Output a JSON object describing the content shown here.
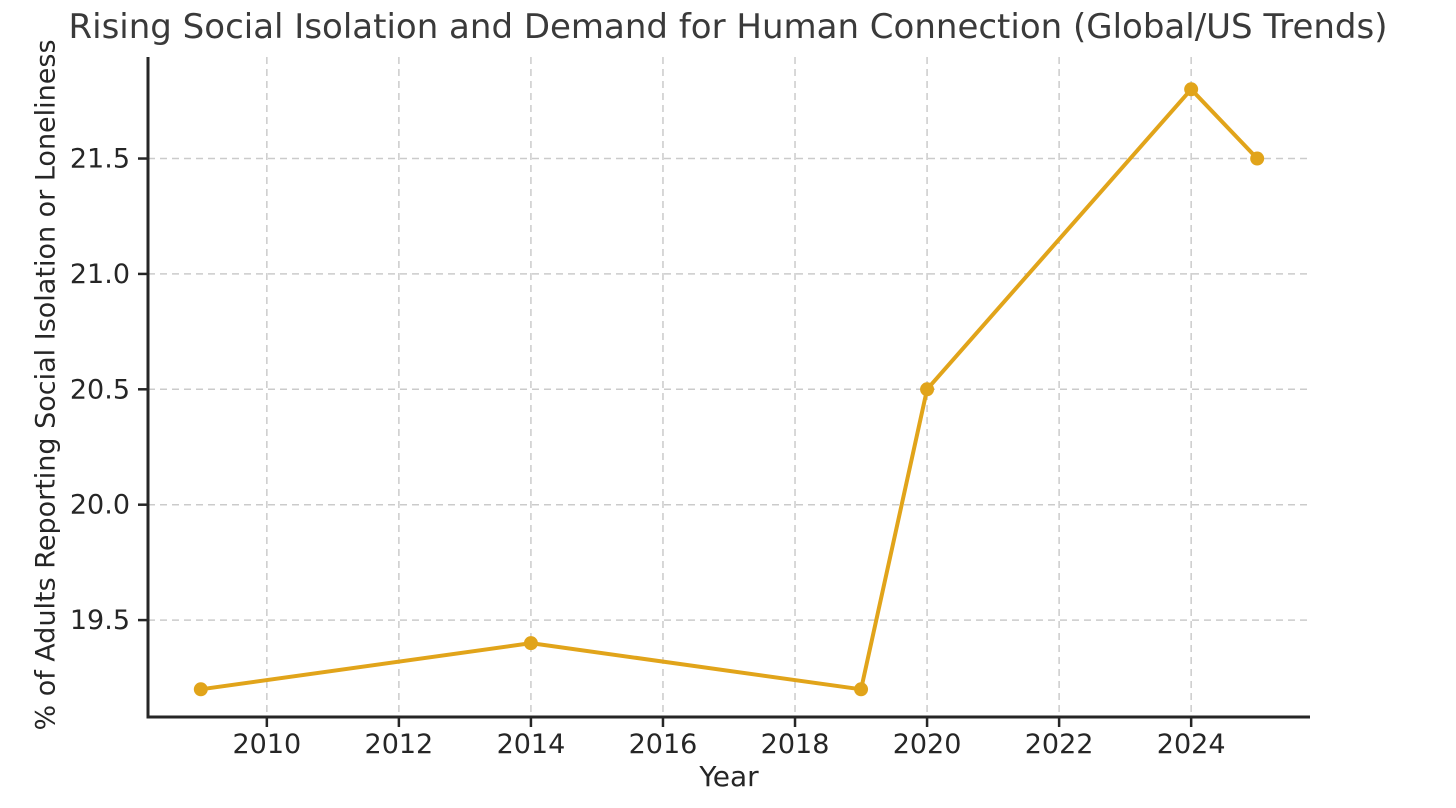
{
  "chart_data": {
    "type": "line",
    "title": "Rising Social Isolation and Demand for Human Connection (Global/US Trends)",
    "xlabel": "Year",
    "ylabel": "% of Adults Reporting Social Isolation or Loneliness",
    "x": [
      2009,
      2014,
      2019,
      2020,
      2024,
      2025
    ],
    "y": [
      19.2,
      19.4,
      19.2,
      20.5,
      21.8,
      21.5
    ],
    "xlim": [
      2008.2,
      2025.8
    ],
    "ylim": [
      19.08,
      21.94
    ],
    "xticks": [
      2010,
      2012,
      2014,
      2016,
      2018,
      2020,
      2022,
      2024
    ],
    "xtick_labels": [
      "2010",
      "2012",
      "2014",
      "2016",
      "2018",
      "2020",
      "2022",
      "2024"
    ],
    "yticks": [
      19.5,
      20.0,
      20.5,
      21.0,
      21.5
    ],
    "ytick_labels": [
      "19.5",
      "20.0",
      "20.5",
      "21.0",
      "21.5"
    ],
    "grid": true,
    "grid_style": "dashed",
    "legend": false,
    "spines": [
      "left",
      "bottom"
    ],
    "marker_style": "circle",
    "line_color": "#E1A41A",
    "grid_color": "#cbcbcb",
    "spine_color": "#262626",
    "text_color": "#262626",
    "title_color": "#3a3a3a",
    "background": "#ffffff"
  }
}
